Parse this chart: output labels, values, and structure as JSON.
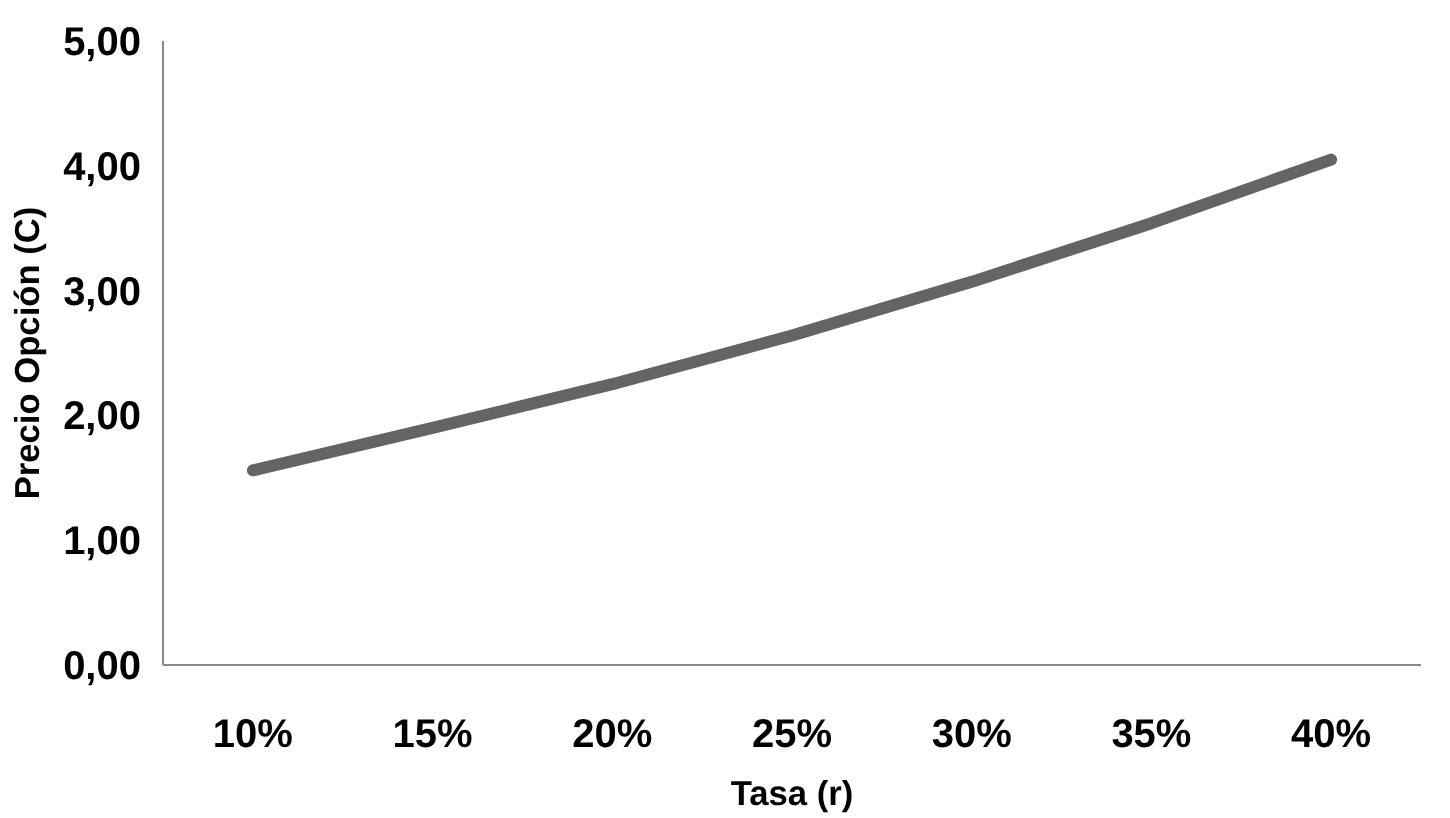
{
  "chart_data": {
    "type": "line",
    "xlabel": "Tasa (r)",
    "ylabel": "Precio Opción (C)",
    "categories": [
      "10%",
      "15%",
      "20%",
      "25%",
      "30%",
      "35%",
      "40%"
    ],
    "series": [
      {
        "color": "#646464",
        "values": [
          1.56,
          1.9,
          2.25,
          2.64,
          3.07,
          3.54,
          4.05
        ]
      }
    ],
    "ylim": [
      0,
      5
    ],
    "yticks": [
      {
        "value": 0,
        "label": "0,00"
      },
      {
        "value": 1,
        "label": "1,00"
      },
      {
        "value": 2,
        "label": "2,00"
      },
      {
        "value": 3,
        "label": "3,00"
      },
      {
        "value": 4,
        "label": "4,00"
      },
      {
        "value": 5,
        "label": "5,00"
      }
    ],
    "grid": false,
    "marker": "none",
    "line_style": "solid"
  }
}
